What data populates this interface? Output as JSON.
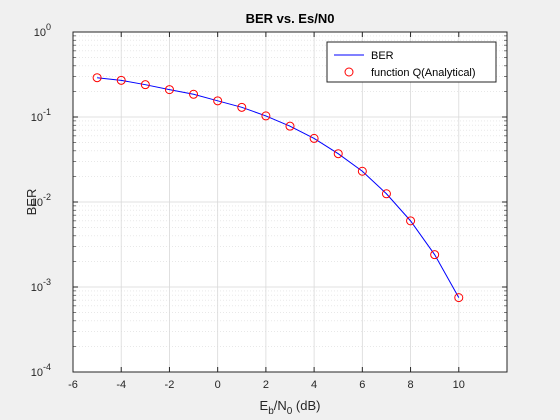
{
  "chart_data": {
    "type": "line",
    "title": "BER vs. Es/N0",
    "xlabel": "E_b/N_0 (dB)",
    "ylabel": "BER",
    "xlim": [
      -6,
      12
    ],
    "ylim": [
      0.0001,
      1
    ],
    "yscale": "log",
    "grid": true,
    "minor_grid": true,
    "legend_position": "top-right",
    "x_ticks": [
      -6,
      -4,
      -2,
      0,
      2,
      4,
      6,
      8,
      10,
      12
    ],
    "x_tick_labels": [
      "-6",
      "-4",
      "-2",
      "0",
      "2",
      "4",
      "6",
      "8",
      "10",
      ""
    ],
    "y_ticks": [
      0.0001,
      0.001,
      0.01,
      0.1,
      1
    ],
    "y_tick_labels": [
      {
        "base": "10",
        "exp": "-4"
      },
      {
        "base": "10",
        "exp": "-3"
      },
      {
        "base": "10",
        "exp": "-2"
      },
      {
        "base": "10",
        "exp": "-1"
      },
      {
        "base": "10",
        "exp": "0"
      }
    ],
    "series": [
      {
        "name": "BER",
        "style": "line",
        "color": "#0000ff",
        "x": [
          -5,
          -4,
          -3,
          -2,
          -1,
          0,
          1,
          2,
          3,
          4,
          5,
          6,
          7,
          8,
          9,
          10
        ],
        "y": [
          0.29,
          0.27,
          0.24,
          0.21,
          0.185,
          0.155,
          0.13,
          0.103,
          0.078,
          0.056,
          0.037,
          0.023,
          0.0125,
          0.006,
          0.0024,
          0.00075
        ]
      },
      {
        "name": "function Q(Analytical)",
        "style": "markers",
        "marker": "circle",
        "color": "#ff0000",
        "x": [
          -5,
          -4,
          -3,
          -2,
          -1,
          0,
          1,
          2,
          3,
          4,
          5,
          6,
          7,
          8,
          9,
          10
        ],
        "y": [
          0.29,
          0.27,
          0.24,
          0.21,
          0.185,
          0.155,
          0.13,
          0.103,
          0.078,
          0.056,
          0.037,
          0.023,
          0.0125,
          0.006,
          0.0024,
          0.00075
        ]
      }
    ]
  }
}
